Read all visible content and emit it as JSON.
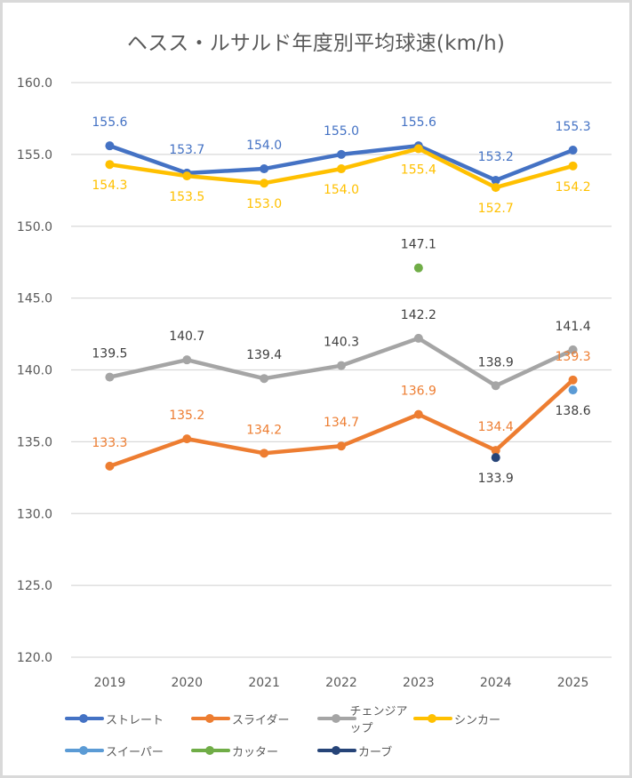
{
  "chart_data": {
    "type": "line",
    "title": "ヘスス・ルサルド年度別平均球速(km/h)",
    "xlabel": "",
    "ylabel": "",
    "categories": [
      "2019",
      "2020",
      "2021",
      "2022",
      "2023",
      "2024",
      "2025"
    ],
    "ylim": [
      120.0,
      160.0
    ],
    "y_ticks": [
      "160.0",
      "155.0",
      "150.0",
      "145.0",
      "140.0",
      "135.0",
      "130.0",
      "125.0",
      "120.0"
    ],
    "grid": true,
    "legend_position": "bottom",
    "series": [
      {
        "name": "ストレート",
        "color": "#4472c4",
        "values": [
          155.6,
          153.7,
          154.0,
          155.0,
          155.6,
          153.2,
          155.3
        ],
        "label_pos": "above",
        "label_color": "#4472c4"
      },
      {
        "name": "スライダー",
        "color": "#ed7d31",
        "values": [
          133.3,
          135.2,
          134.2,
          134.7,
          136.9,
          134.4,
          139.3
        ],
        "label_pos": "above",
        "label_color": "#ed7d31"
      },
      {
        "name": "チェンジアップ",
        "color": "#a5a5a5",
        "values": [
          139.5,
          140.7,
          139.4,
          140.3,
          142.2,
          138.9,
          141.4
        ],
        "label_pos": "above",
        "label_color": "#404040"
      },
      {
        "name": "シンカー",
        "color": "#ffc000",
        "values": [
          154.3,
          153.5,
          153.0,
          154.0,
          155.4,
          152.7,
          154.2
        ],
        "label_pos": "below",
        "label_color": "#ffc000"
      },
      {
        "name": "スイーパー",
        "color": "#5b9bd5",
        "values": [
          null,
          null,
          null,
          null,
          null,
          null,
          138.6
        ],
        "label_pos": "below",
        "label_color": "#404040"
      },
      {
        "name": "カッター",
        "color": "#70ad47",
        "values": [
          null,
          null,
          null,
          null,
          147.1,
          null,
          null
        ],
        "label_pos": "above",
        "label_color": "#404040"
      },
      {
        "name": "カーブ",
        "color": "#264478",
        "values": [
          null,
          null,
          null,
          null,
          null,
          133.9,
          null
        ],
        "label_pos": "below",
        "label_color": "#404040"
      }
    ]
  }
}
